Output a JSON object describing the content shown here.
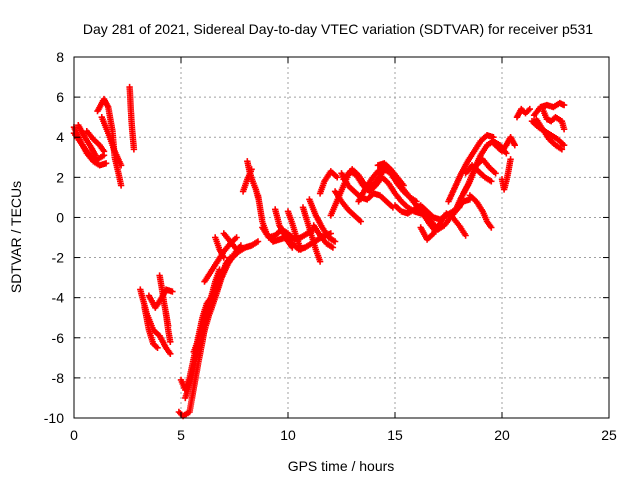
{
  "chart_data": {
    "type": "scatter",
    "title": "Day 281 of 2021, Sidereal Day-to-day VTEC variation (SDTVAR) for receiver p531",
    "xlabel": "GPS time / hours",
    "ylabel": "SDTVAR / TECUs",
    "xlim": [
      0,
      25
    ],
    "ylim": [
      -10,
      8
    ],
    "x_ticks": [
      0,
      5,
      10,
      15,
      20,
      25
    ],
    "y_ticks": [
      -10,
      -8,
      -6,
      -4,
      -2,
      0,
      2,
      4,
      6,
      8
    ],
    "grid": true,
    "legend": "none",
    "marker": "plus",
    "color": "#ff0000",
    "tracks": [
      [
        [
          0.0,
          4.5
        ],
        [
          0.3,
          3.8
        ],
        [
          0.6,
          3.2
        ],
        [
          0.9,
          2.8
        ],
        [
          1.2,
          2.6
        ],
        [
          1.5,
          2.7
        ]
      ],
      [
        [
          0.0,
          4.2
        ],
        [
          0.4,
          3.6
        ],
        [
          0.8,
          3.0
        ],
        [
          1.1,
          2.9
        ],
        [
          1.4,
          3.1
        ]
      ],
      [
        [
          0.2,
          4.6
        ],
        [
          0.5,
          4.0
        ],
        [
          0.8,
          3.5
        ],
        [
          1.0,
          3.1
        ]
      ],
      [
        [
          0.6,
          4.3
        ],
        [
          0.9,
          3.9
        ],
        [
          1.2,
          3.6
        ],
        [
          1.4,
          3.3
        ]
      ],
      [
        [
          1.1,
          5.3
        ],
        [
          1.4,
          5.9
        ],
        [
          1.6,
          5.5
        ],
        [
          1.8,
          4.3
        ],
        [
          1.9,
          3.0
        ],
        [
          2.1,
          2.1
        ],
        [
          2.2,
          1.6
        ]
      ],
      [
        [
          1.3,
          5.0
        ],
        [
          1.6,
          4.2
        ],
        [
          1.9,
          3.3
        ],
        [
          2.2,
          2.6
        ]
      ],
      [
        [
          2.6,
          6.5
        ],
        [
          2.65,
          5.5
        ],
        [
          2.7,
          4.6
        ],
        [
          2.75,
          4.0
        ],
        [
          2.8,
          3.4
        ]
      ],
      [
        [
          3.1,
          -3.6
        ],
        [
          3.4,
          -4.8
        ],
        [
          3.7,
          -5.6
        ],
        [
          4.0,
          -5.9
        ],
        [
          4.3,
          -6.5
        ],
        [
          4.5,
          -6.8
        ]
      ],
      [
        [
          3.3,
          -4.5
        ],
        [
          3.5,
          -5.6
        ],
        [
          3.7,
          -6.3
        ],
        [
          3.9,
          -6.5
        ]
      ],
      [
        [
          3.5,
          -3.9
        ],
        [
          3.8,
          -4.5
        ],
        [
          4.1,
          -4.0
        ],
        [
          4.3,
          -3.6
        ],
        [
          4.6,
          -3.7
        ]
      ],
      [
        [
          4.0,
          -2.9
        ],
        [
          4.1,
          -3.5
        ],
        [
          4.2,
          -4.2
        ],
        [
          4.3,
          -4.8
        ],
        [
          4.4,
          -5.4
        ]
      ],
      [
        [
          4.3,
          -4.8
        ],
        [
          4.4,
          -5.6
        ],
        [
          4.5,
          -6.2
        ]
      ],
      [
        [
          5.0,
          -8.1
        ],
        [
          5.2,
          -8.6
        ],
        [
          5.4,
          -8.0
        ],
        [
          5.6,
          -7.0
        ],
        [
          5.8,
          -6.0
        ],
        [
          6.0,
          -5.0
        ],
        [
          6.2,
          -4.3
        ],
        [
          6.4,
          -4.0
        ]
      ],
      [
        [
          4.9,
          -9.7
        ],
        [
          5.1,
          -9.9
        ],
        [
          5.4,
          -9.7
        ],
        [
          5.6,
          -8.5
        ],
        [
          5.8,
          -7.3
        ],
        [
          6.0,
          -6.2
        ],
        [
          6.2,
          -5.0
        ],
        [
          6.4,
          -4.0
        ],
        [
          6.6,
          -3.2
        ],
        [
          6.8,
          -2.6
        ]
      ],
      [
        [
          5.2,
          -9.0
        ],
        [
          5.5,
          -8.0
        ],
        [
          5.8,
          -6.6
        ],
        [
          6.1,
          -5.5
        ],
        [
          6.4,
          -4.6
        ],
        [
          6.7,
          -3.6
        ],
        [
          6.9,
          -2.9
        ],
        [
          7.1,
          -2.3
        ],
        [
          7.3,
          -2.0
        ]
      ],
      [
        [
          5.6,
          -6.7
        ],
        [
          5.9,
          -5.8
        ],
        [
          6.2,
          -4.8
        ],
        [
          6.5,
          -3.8
        ],
        [
          6.8,
          -3.0
        ],
        [
          7.1,
          -2.4
        ],
        [
          7.4,
          -2.0
        ],
        [
          7.7,
          -1.7
        ],
        [
          8.0,
          -1.5
        ],
        [
          8.3,
          -1.4
        ],
        [
          8.6,
          -1.2
        ]
      ],
      [
        [
          6.0,
          -6.0
        ],
        [
          6.3,
          -4.9
        ],
        [
          6.6,
          -4.0
        ],
        [
          6.9,
          -3.0
        ],
        [
          7.2,
          -2.3
        ],
        [
          7.5,
          -1.8
        ],
        [
          7.8,
          -1.4
        ]
      ],
      [
        [
          6.1,
          -3.2
        ],
        [
          6.4,
          -2.7
        ],
        [
          6.7,
          -2.2
        ],
        [
          7.0,
          -1.7
        ],
        [
          7.3,
          -1.3
        ],
        [
          7.6,
          -1.0
        ]
      ],
      [
        [
          6.6,
          -1.0
        ],
        [
          6.8,
          -1.6
        ],
        [
          7.0,
          -2.0
        ]
      ],
      [
        [
          7.0,
          -0.8
        ],
        [
          7.3,
          -1.2
        ],
        [
          7.6,
          -1.6
        ]
      ],
      [
        [
          8.1,
          2.8
        ],
        [
          8.2,
          2.3
        ],
        [
          8.35,
          1.8
        ],
        [
          8.5,
          1.4
        ],
        [
          8.6,
          1.0
        ]
      ],
      [
        [
          7.9,
          1.3
        ],
        [
          8.1,
          1.9
        ],
        [
          8.3,
          2.4
        ]
      ],
      [
        [
          8.6,
          1.1
        ],
        [
          8.8,
          -0.2
        ],
        [
          9.0,
          -0.8
        ],
        [
          9.3,
          -1.2
        ],
        [
          9.6,
          -1.1
        ],
        [
          9.9,
          -1.0
        ],
        [
          10.2,
          -1.3
        ],
        [
          10.5,
          -1.6
        ],
        [
          10.8,
          -1.5
        ],
        [
          11.1,
          -1.3
        ],
        [
          11.4,
          -1.1
        ],
        [
          11.7,
          -0.9
        ],
        [
          12.0,
          -0.8
        ]
      ],
      [
        [
          8.8,
          -0.5
        ],
        [
          9.1,
          -1.0
        ],
        [
          9.4,
          -0.9
        ],
        [
          9.7,
          -0.6
        ],
        [
          10.0,
          -0.8
        ],
        [
          10.3,
          -1.1
        ],
        [
          10.6,
          -1.0
        ],
        [
          10.9,
          -0.8
        ],
        [
          11.2,
          -0.6
        ]
      ],
      [
        [
          9.4,
          0.4
        ],
        [
          9.6,
          -0.4
        ],
        [
          9.8,
          -0.8
        ],
        [
          10.0,
          -1.2
        ],
        [
          10.2,
          -1.5
        ]
      ],
      [
        [
          10.0,
          0.3
        ],
        [
          10.2,
          -0.3
        ],
        [
          10.4,
          -1.0
        ],
        [
          10.6,
          -1.6
        ]
      ],
      [
        [
          10.7,
          0.5
        ],
        [
          10.9,
          -0.2
        ],
        [
          11.1,
          -0.9
        ],
        [
          11.3,
          -1.6
        ],
        [
          11.5,
          -2.2
        ]
      ],
      [
        [
          11.0,
          0.9
        ],
        [
          11.3,
          0.1
        ],
        [
          11.6,
          -0.5
        ],
        [
          11.9,
          -1.0
        ],
        [
          12.2,
          -1.2
        ]
      ],
      [
        [
          11.2,
          -0.4
        ],
        [
          11.5,
          -0.9
        ],
        [
          11.8,
          -1.3
        ],
        [
          12.1,
          -1.5
        ]
      ],
      [
        [
          12.0,
          0.1
        ],
        [
          12.2,
          0.6
        ],
        [
          12.4,
          1.1
        ],
        [
          12.6,
          1.6
        ],
        [
          12.8,
          2.1
        ],
        [
          13.0,
          2.4
        ],
        [
          13.3,
          2.1
        ],
        [
          13.6,
          1.6
        ],
        [
          13.9,
          1.5
        ],
        [
          14.2,
          1.9
        ],
        [
          14.5,
          2.4
        ],
        [
          14.8,
          2.2
        ],
        [
          15.1,
          1.7
        ],
        [
          15.4,
          1.3
        ],
        [
          15.7,
          1.0
        ],
        [
          16.0,
          0.8
        ]
      ],
      [
        [
          11.5,
          1.2
        ],
        [
          11.7,
          1.8
        ],
        [
          12.0,
          2.3
        ],
        [
          12.3,
          2.0
        ]
      ],
      [
        [
          12.2,
          1.3
        ],
        [
          12.5,
          0.8
        ],
        [
          12.8,
          0.4
        ],
        [
          13.1,
          0.1
        ],
        [
          13.4,
          -0.2
        ]
      ],
      [
        [
          12.5,
          2.2
        ],
        [
          12.8,
          1.6
        ],
        [
          13.1,
          1.3
        ],
        [
          13.4,
          1.0
        ],
        [
          13.7,
          0.9
        ],
        [
          14.0,
          1.2
        ],
        [
          14.3,
          1.1
        ],
        [
          14.6,
          0.8
        ],
        [
          14.9,
          0.5
        ]
      ],
      [
        [
          12.6,
          1.9
        ],
        [
          12.9,
          2.3
        ],
        [
          13.2,
          2.1
        ],
        [
          13.5,
          1.6
        ],
        [
          13.8,
          1.3
        ],
        [
          14.1,
          1.6
        ],
        [
          14.4,
          2.0
        ],
        [
          14.7,
          1.7
        ],
        [
          15.0,
          1.2
        ],
        [
          15.3,
          0.8
        ],
        [
          15.6,
          0.5
        ],
        [
          15.9,
          0.3
        ],
        [
          16.2,
          0.2
        ],
        [
          16.5,
          0.0
        ]
      ],
      [
        [
          13.3,
          0.8
        ],
        [
          13.6,
          1.4
        ],
        [
          13.9,
          1.9
        ],
        [
          14.2,
          2.3
        ],
        [
          14.5,
          2.5
        ],
        [
          14.8,
          2.3
        ],
        [
          15.1,
          1.8
        ],
        [
          15.4,
          1.4
        ],
        [
          15.7,
          1.0
        ],
        [
          16.0,
          0.6
        ],
        [
          16.3,
          0.2
        ],
        [
          16.6,
          -0.3
        ],
        [
          16.9,
          -0.7
        ]
      ],
      [
        [
          14.2,
          2.6
        ],
        [
          14.5,
          2.7
        ],
        [
          14.8,
          2.4
        ],
        [
          15.1,
          2.0
        ],
        [
          15.4,
          1.6
        ]
      ],
      [
        [
          15.0,
          0.6
        ],
        [
          15.3,
          0.3
        ],
        [
          15.6,
          0.2
        ],
        [
          15.9,
          0.4
        ],
        [
          16.2,
          0.6
        ],
        [
          16.5,
          0.3
        ],
        [
          16.8,
          0.0
        ],
        [
          17.1,
          -0.1
        ],
        [
          17.4,
          0.1
        ],
        [
          17.7,
          0.3
        ],
        [
          18.0,
          0.5
        ]
      ],
      [
        [
          16.2,
          -0.5
        ],
        [
          16.5,
          -1.1
        ],
        [
          16.8,
          -0.8
        ],
        [
          17.1,
          -0.3
        ],
        [
          17.4,
          0.2
        ],
        [
          17.7,
          0.0
        ],
        [
          18.0,
          -0.4
        ],
        [
          18.3,
          -0.9
        ]
      ],
      [
        [
          16.4,
          0.2
        ],
        [
          16.7,
          -0.2
        ],
        [
          17.0,
          -0.6
        ],
        [
          17.3,
          -0.4
        ],
        [
          17.6,
          0.0
        ],
        [
          17.9,
          0.4
        ],
        [
          18.2,
          0.8
        ],
        [
          18.5,
          0.9
        ]
      ],
      [
        [
          17.5,
          0.8
        ],
        [
          17.8,
          1.5
        ],
        [
          18.1,
          2.2
        ],
        [
          18.4,
          2.8
        ],
        [
          18.7,
          3.3
        ],
        [
          19.0,
          3.8
        ],
        [
          19.3,
          4.1
        ],
        [
          19.6,
          4.0
        ]
      ],
      [
        [
          17.8,
          0.3
        ],
        [
          18.1,
          1.0
        ],
        [
          18.4,
          1.6
        ],
        [
          18.7,
          2.4
        ],
        [
          19.0,
          3.1
        ],
        [
          19.3,
          3.6
        ],
        [
          19.6,
          3.8
        ],
        [
          19.9,
          3.6
        ],
        [
          20.2,
          3.2
        ]
      ],
      [
        [
          18.2,
          1.2
        ],
        [
          18.5,
          1.8
        ],
        [
          18.8,
          2.6
        ],
        [
          19.1,
          2.9
        ],
        [
          19.4,
          2.5
        ],
        [
          19.7,
          2.2
        ]
      ],
      [
        [
          18.3,
          2.2
        ],
        [
          18.6,
          2.6
        ],
        [
          18.9,
          2.3
        ],
        [
          19.2,
          2.0
        ],
        [
          19.5,
          1.8
        ]
      ],
      [
        [
          18.5,
          1.1
        ],
        [
          18.8,
          0.8
        ],
        [
          19.1,
          0.3
        ],
        [
          19.3,
          -0.2
        ],
        [
          19.5,
          -0.5
        ]
      ],
      [
        [
          19.6,
          3.7
        ],
        [
          19.8,
          3.5
        ],
        [
          20.0,
          3.3
        ],
        [
          20.2,
          3.6
        ],
        [
          20.4,
          4.0
        ],
        [
          20.6,
          3.6
        ]
      ],
      [
        [
          20.4,
          2.9
        ],
        [
          20.3,
          2.3
        ],
        [
          20.2,
          1.8
        ],
        [
          20.1,
          1.4
        ],
        [
          20.0,
          1.9
        ]
      ],
      [
        [
          20.7,
          5.0
        ],
        [
          20.9,
          5.4
        ],
        [
          21.1,
          5.2
        ],
        [
          21.3,
          5.4
        ]
      ],
      [
        [
          21.5,
          5.1
        ],
        [
          21.8,
          5.5
        ],
        [
          22.1,
          5.6
        ],
        [
          22.4,
          5.5
        ],
        [
          22.7,
          5.7
        ],
        [
          22.9,
          5.6
        ]
      ],
      [
        [
          21.4,
          4.8
        ],
        [
          21.7,
          4.5
        ],
        [
          22.0,
          4.3
        ],
        [
          22.3,
          4.1
        ],
        [
          22.6,
          3.9
        ],
        [
          22.9,
          3.6
        ]
      ],
      [
        [
          21.6,
          4.9
        ],
        [
          21.9,
          4.4
        ],
        [
          22.2,
          3.9
        ],
        [
          22.5,
          3.6
        ],
        [
          22.8,
          3.4
        ]
      ],
      [
        [
          21.9,
          5.4
        ],
        [
          22.1,
          4.9
        ],
        [
          22.3,
          4.8
        ],
        [
          22.5,
          5.0
        ],
        [
          22.8,
          4.8
        ],
        [
          22.9,
          4.4
        ]
      ]
    ]
  }
}
